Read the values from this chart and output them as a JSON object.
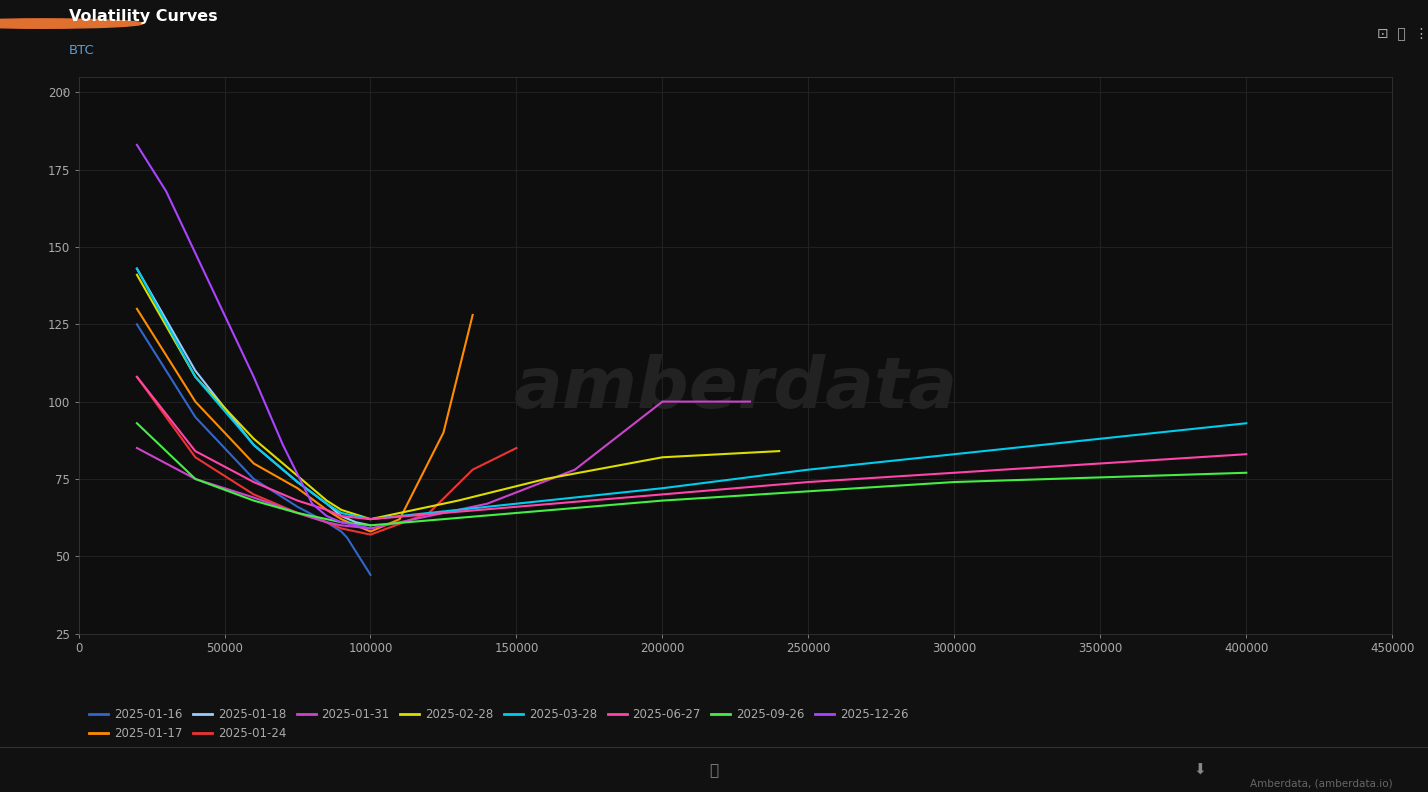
{
  "title": "Volatility Curves",
  "subtitle": "BTC",
  "background_color": "#111111",
  "plot_bg_color": "#0e0e0e",
  "header_color": "#555555",
  "text_color": "#aaaaaa",
  "grid_color": "#252525",
  "footer": "Amberdata, (amberdata.io)",
  "xlim": [
    0,
    450000
  ],
  "ylim": [
    25,
    205
  ],
  "yticks": [
    25,
    50,
    75,
    100,
    125,
    150,
    175,
    200
  ],
  "xticks": [
    0,
    50000,
    100000,
    150000,
    200000,
    250000,
    300000,
    350000,
    400000,
    450000
  ],
  "curves": {
    "2025-01-16": {
      "color": "#3366cc",
      "x": [
        20000,
        40000,
        60000,
        75000,
        85000,
        90000,
        92000,
        94000,
        96000,
        98000,
        100000
      ],
      "y": [
        125,
        95,
        75,
        66,
        61,
        58,
        56,
        53,
        50,
        47,
        44
      ]
    },
    "2025-01-17": {
      "color": "#ff8c00",
      "x": [
        20000,
        40000,
        60000,
        75000,
        85000,
        90000,
        95000,
        100000,
        110000,
        125000,
        135000
      ],
      "y": [
        130,
        100,
        80,
        72,
        65,
        62,
        60,
        58,
        62,
        90,
        128
      ]
    },
    "2025-01-18": {
      "color": "#99ccff",
      "x": [
        20000,
        40000,
        60000,
        75000,
        85000,
        90000,
        95000,
        100000
      ],
      "y": [
        143,
        110,
        86,
        74,
        67,
        63,
        61,
        60
      ]
    },
    "2025-01-24": {
      "color": "#ee3333",
      "x": [
        20000,
        40000,
        60000,
        75000,
        85000,
        90000,
        95000,
        100000,
        120000,
        135000,
        150000
      ],
      "y": [
        108,
        82,
        70,
        64,
        61,
        59,
        58,
        57,
        64,
        78,
        85
      ]
    },
    "2025-01-31": {
      "color": "#cc44cc",
      "x": [
        20000,
        40000,
        60000,
        75000,
        85000,
        90000,
        100000,
        140000,
        170000,
        200000,
        230000
      ],
      "y": [
        85,
        75,
        69,
        64,
        61,
        60,
        59,
        67,
        78,
        100,
        100
      ]
    },
    "2025-02-28": {
      "color": "#dddd00",
      "x": [
        20000,
        40000,
        60000,
        75000,
        85000,
        90000,
        100000,
        130000,
        160000,
        200000,
        240000
      ],
      "y": [
        141,
        108,
        88,
        76,
        68,
        65,
        62,
        68,
        75,
        82,
        84
      ]
    },
    "2025-03-28": {
      "color": "#00ccee",
      "x": [
        20000,
        40000,
        60000,
        75000,
        85000,
        90000,
        100000,
        150000,
        200000,
        250000,
        300000,
        400000
      ],
      "y": [
        143,
        108,
        86,
        74,
        67,
        64,
        62,
        67,
        72,
        78,
        83,
        93
      ]
    },
    "2025-06-27": {
      "color": "#ff44aa",
      "x": [
        20000,
        40000,
        60000,
        75000,
        85000,
        90000,
        100000,
        150000,
        200000,
        250000,
        300000,
        400000
      ],
      "y": [
        108,
        84,
        74,
        68,
        65,
        63,
        62,
        66,
        70,
        74,
        77,
        83
      ]
    },
    "2025-09-26": {
      "color": "#44ee44",
      "x": [
        20000,
        40000,
        60000,
        75000,
        85000,
        90000,
        100000,
        150000,
        200000,
        250000,
        300000,
        400000
      ],
      "y": [
        93,
        75,
        68,
        64,
        62,
        61,
        60,
        64,
        68,
        71,
        74,
        77
      ]
    },
    "2025-12-26": {
      "color": "#aa44ff",
      "x": [
        20000,
        30000,
        40000,
        50000,
        60000,
        70000,
        80000,
        85000,
        90000,
        95000,
        100000
      ],
      "y": [
        183,
        168,
        148,
        128,
        108,
        86,
        67,
        63,
        61,
        60,
        59
      ]
    }
  }
}
